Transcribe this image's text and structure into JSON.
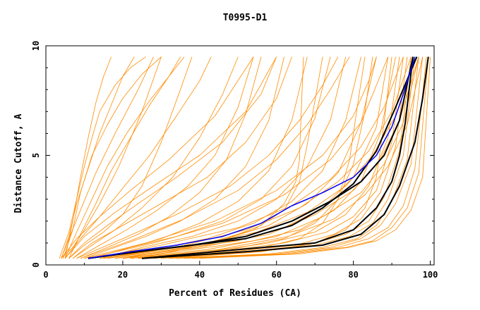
{
  "chart_data": {
    "type": "line",
    "title": "T0995-D1",
    "xlabel": "Percent of Residues (CA)",
    "ylabel": "Distance Cutoff, A",
    "xlim": [
      0,
      101
    ],
    "ylim": [
      0,
      10
    ],
    "x_ticks": [
      "0",
      "20",
      "40",
      "60",
      "80",
      "100"
    ],
    "y_ticks": [
      "0",
      "5",
      "10"
    ],
    "grid": false,
    "legend": "none",
    "colors": {
      "models": "#ff8c00",
      "highlight_black": "#000000",
      "highlight_blue": "#0000ff"
    },
    "series": [
      {
        "x": [
          3.5,
          6,
          8,
          10,
          12,
          14,
          18,
          22,
          26
        ],
        "y": [
          0.3,
          1.5,
          3.0,
          4.5,
          5.8,
          7.0,
          8.2,
          9.0,
          9.5
        ],
        "color": "#ff8c00"
      },
      {
        "x": [
          4,
          6,
          8,
          11,
          14,
          17,
          20,
          23
        ],
        "y": [
          0.3,
          1.3,
          2.8,
          4.4,
          6.0,
          7.3,
          8.6,
          9.5
        ],
        "color": "#ff8c00"
      },
      {
        "x": [
          4.5,
          7,
          9,
          12,
          16,
          20,
          25,
          30
        ],
        "y": [
          0.3,
          1.6,
          3.3,
          5.0,
          6.4,
          7.6,
          8.7,
          9.5
        ],
        "color": "#ff8c00"
      },
      {
        "x": [
          5,
          7,
          9,
          11,
          13,
          15,
          17
        ],
        "y": [
          0.3,
          2.0,
          4.0,
          5.8,
          7.4,
          8.6,
          9.5
        ],
        "color": "#ff8c00"
      },
      {
        "x": [
          4,
          6,
          9,
          13,
          18,
          24,
          28
        ],
        "y": [
          0.3,
          1.2,
          2.5,
          4.2,
          6.0,
          8.0,
          9.5
        ],
        "color": "#ff8c00"
      },
      {
        "x": [
          5,
          8,
          12,
          16,
          21,
          27,
          32,
          36
        ],
        "y": [
          0.3,
          1.5,
          3.0,
          4.5,
          6.0,
          7.5,
          8.6,
          9.5
        ],
        "color": "#ff8c00"
      },
      {
        "x": [
          4,
          7,
          10,
          14,
          19,
          25,
          30
        ],
        "y": [
          0.3,
          0.8,
          1.6,
          2.8,
          4.5,
          7.0,
          9.5
        ],
        "color": "#ff8c00"
      },
      {
        "x": [
          6,
          9,
          13,
          17,
          22,
          27,
          32,
          35
        ],
        "y": [
          0.3,
          1.4,
          2.8,
          4.3,
          5.8,
          7.3,
          8.6,
          9.5
        ],
        "color": "#ff8c00"
      },
      {
        "x": [
          5,
          9,
          14,
          20,
          27,
          34,
          40,
          43
        ],
        "y": [
          0.3,
          1.2,
          2.2,
          3.5,
          5.0,
          6.8,
          8.4,
          9.5
        ],
        "color": "#ff8c00"
      },
      {
        "x": [
          6,
          10,
          15,
          20,
          25,
          30,
          35,
          38
        ],
        "y": [
          0.3,
          0.9,
          1.5,
          2.3,
          3.6,
          5.6,
          8.0,
          9.5
        ],
        "color": "#ff8c00"
      },
      {
        "x": [
          7,
          12,
          18,
          25,
          33,
          40,
          46,
          50
        ],
        "y": [
          0.3,
          0.9,
          1.6,
          2.6,
          4.0,
          5.8,
          7.8,
          9.5
        ],
        "color": "#ff8c00"
      },
      {
        "x": [
          8,
          14,
          21,
          29,
          37,
          44,
          50,
          54
        ],
        "y": [
          0.3,
          0.9,
          1.6,
          2.5,
          3.6,
          5.0,
          7.2,
          9.5
        ],
        "color": "#ff8c00"
      },
      {
        "x": [
          9,
          16,
          24,
          32,
          40,
          47,
          52,
          56
        ],
        "y": [
          0.3,
          0.8,
          1.4,
          2.2,
          3.3,
          4.8,
          6.9,
          9.5
        ],
        "color": "#ff8c00"
      },
      {
        "x": [
          10,
          18,
          26,
          35,
          44,
          52,
          58,
          62
        ],
        "y": [
          0.3,
          0.8,
          1.3,
          2.0,
          3.0,
          4.5,
          6.6,
          9.5
        ],
        "color": "#ff8c00"
      },
      {
        "x": [
          12,
          20,
          30,
          40,
          50,
          58,
          64,
          68
        ],
        "y": [
          0.3,
          0.7,
          1.2,
          1.9,
          2.9,
          4.3,
          6.6,
          9.5
        ],
        "color": "#ff8c00"
      },
      {
        "x": [
          12,
          22,
          34,
          46,
          56,
          64,
          70,
          74
        ],
        "y": [
          0.3,
          0.8,
          1.3,
          2.0,
          3.0,
          4.5,
          6.7,
          9.5
        ],
        "color": "#ff8c00"
      },
      {
        "x": [
          14,
          25,
          38,
          50,
          60,
          68,
          74,
          78
        ],
        "y": [
          0.3,
          0.8,
          1.3,
          2.0,
          3.0,
          4.5,
          6.6,
          9.5
        ],
        "color": "#ff8c00"
      },
      {
        "x": [
          15,
          28,
          42,
          54,
          64,
          72,
          78,
          82
        ],
        "y": [
          0.3,
          0.7,
          1.2,
          1.9,
          2.9,
          4.3,
          6.6,
          9.5
        ],
        "color": "#ff8c00"
      },
      {
        "x": [
          16,
          30,
          45,
          58,
          68,
          76,
          82,
          86
        ],
        "y": [
          0.3,
          0.7,
          1.1,
          1.8,
          2.8,
          4.2,
          6.5,
          9.5
        ],
        "color": "#ff8c00"
      },
      {
        "x": [
          18,
          34,
          50,
          62,
          72,
          80,
          86,
          89
        ],
        "y": [
          0.3,
          0.7,
          1.1,
          1.7,
          2.6,
          4.0,
          6.3,
          9.5
        ],
        "color": "#ff8c00"
      },
      {
        "x": [
          20,
          38,
          54,
          66,
          75,
          82,
          87,
          91
        ],
        "y": [
          0.3,
          0.7,
          1.1,
          1.6,
          2.5,
          3.8,
          6.0,
          9.5
        ],
        "color": "#ff8c00"
      },
      {
        "x": [
          22,
          42,
          58,
          70,
          78,
          84,
          89,
          92
        ],
        "y": [
          0.3,
          0.6,
          1.0,
          1.5,
          2.3,
          3.6,
          5.8,
          9.5
        ],
        "color": "#ff8c00"
      },
      {
        "x": [
          24,
          45,
          62,
          73,
          80,
          86,
          90,
          93
        ],
        "y": [
          0.3,
          0.6,
          1.0,
          1.5,
          2.2,
          3.4,
          5.6,
          9.5
        ],
        "color": "#ff8c00"
      },
      {
        "x": [
          26,
          48,
          65,
          75,
          82,
          87,
          91,
          94
        ],
        "y": [
          0.3,
          0.6,
          0.9,
          1.4,
          2.1,
          3.3,
          5.4,
          9.5
        ],
        "color": "#ff8c00"
      },
      {
        "x": [
          28,
          52,
          68,
          78,
          84,
          88,
          92,
          95
        ],
        "y": [
          0.3,
          0.6,
          0.9,
          1.4,
          2.0,
          3.1,
          5.2,
          9.5
        ],
        "color": "#ff8c00"
      },
      {
        "x": [
          30,
          55,
          70,
          79,
          85,
          89,
          93,
          96
        ],
        "y": [
          0.3,
          0.6,
          0.9,
          1.3,
          1.9,
          3.0,
          5.0,
          9.5
        ],
        "color": "#ff8c00"
      },
      {
        "x": [
          32,
          58,
          72,
          81,
          86,
          90,
          94,
          97
        ],
        "y": [
          0.3,
          0.5,
          0.8,
          1.2,
          1.8,
          2.9,
          4.8,
          9.5
        ],
        "color": "#ff8c00"
      },
      {
        "x": [
          34,
          60,
          74,
          82,
          87,
          91,
          95,
          98
        ],
        "y": [
          0.3,
          0.5,
          0.8,
          1.2,
          1.8,
          2.8,
          4.6,
          9.5
        ],
        "color": "#ff8c00"
      },
      {
        "x": [
          36,
          62,
          76,
          84,
          89,
          93,
          96,
          99
        ],
        "y": [
          0.3,
          0.5,
          0.8,
          1.2,
          1.7,
          2.7,
          4.4,
          9.5
        ],
        "color": "#ff8c00"
      },
      {
        "x": [
          38,
          64,
          78,
          85,
          90,
          94,
          97,
          99.5
        ],
        "y": [
          0.3,
          0.5,
          0.8,
          1.1,
          1.7,
          2.6,
          4.2,
          9.5
        ],
        "color": "#ff8c00"
      },
      {
        "x": [
          40,
          66,
          79,
          86,
          91,
          95,
          98,
          100
        ],
        "y": [
          0.3,
          0.5,
          0.8,
          1.1,
          1.6,
          2.5,
          4.0,
          9.5
        ],
        "color": "#ff8c00"
      },
      {
        "x": [
          12,
          30,
          50,
          64,
          74,
          82,
          88,
          93
        ],
        "y": [
          0.3,
          0.9,
          1.7,
          2.7,
          3.9,
          5.4,
          7.2,
          9.5
        ],
        "color": "#ff8c00"
      },
      {
        "x": [
          14,
          34,
          52,
          66,
          76,
          84,
          90,
          95
        ],
        "y": [
          0.3,
          0.8,
          1.6,
          2.6,
          3.8,
          5.2,
          7.0,
          9.5
        ],
        "color": "#ff8c00"
      },
      {
        "x": [
          16,
          36,
          55,
          68,
          78,
          85,
          91,
          96
        ],
        "y": [
          0.3,
          0.8,
          1.5,
          2.4,
          3.6,
          5.0,
          6.8,
          9.5
        ],
        "color": "#ff8c00"
      },
      {
        "x": [
          18,
          40,
          58,
          70,
          80,
          87,
          92,
          97
        ],
        "y": [
          0.3,
          0.8,
          1.4,
          2.3,
          3.4,
          4.8,
          6.6,
          9.5
        ],
        "color": "#ff8c00"
      },
      {
        "x": [
          20,
          42,
          60,
          72,
          82,
          88,
          93,
          97
        ],
        "y": [
          0.3,
          0.7,
          1.3,
          2.2,
          3.3,
          4.6,
          6.5,
          9.5
        ],
        "color": "#ff8c00"
      },
      {
        "x": [
          22,
          45,
          63,
          75,
          83,
          89,
          94,
          98
        ],
        "y": [
          0.3,
          0.7,
          1.3,
          2.1,
          3.2,
          4.5,
          6.4,
          9.5
        ],
        "color": "#ff8c00"
      },
      {
        "x": [
          10,
          26,
          44,
          60,
          72,
          80,
          84,
          86
        ],
        "y": [
          0.3,
          1.0,
          2.0,
          3.4,
          5.0,
          6.8,
          8.4,
          9.5
        ],
        "color": "#ff8c00"
      },
      {
        "x": [
          11,
          28,
          46,
          62,
          74,
          82,
          86,
          89
        ],
        "y": [
          0.3,
          1.0,
          1.9,
          3.2,
          4.8,
          6.5,
          8.2,
          9.5
        ],
        "color": "#ff8c00"
      },
      {
        "x": [
          8,
          20,
          34,
          48,
          58,
          66,
          72,
          76
        ],
        "y": [
          0.3,
          1.2,
          2.3,
          3.6,
          5.0,
          6.6,
          8.2,
          9.5
        ],
        "color": "#ff8c00"
      },
      {
        "x": [
          9,
          22,
          36,
          50,
          60,
          68,
          74,
          79
        ],
        "y": [
          0.3,
          1.1,
          2.1,
          3.4,
          4.8,
          6.4,
          8.0,
          9.5
        ],
        "color": "#ff8c00"
      },
      {
        "x": [
          6,
          10,
          16,
          24,
          34,
          46,
          56,
          60
        ],
        "y": [
          0.3,
          1.0,
          1.8,
          2.8,
          4.0,
          5.6,
          7.8,
          9.5
        ],
        "color": "#ff8c00"
      },
      {
        "x": [
          7,
          12,
          20,
          30,
          42,
          52,
          60,
          64
        ],
        "y": [
          0.3,
          1.0,
          1.8,
          2.8,
          4.0,
          5.6,
          7.6,
          9.5
        ],
        "color": "#ff8c00"
      },
      {
        "x": [
          4,
          8,
          14,
          22,
          32,
          44,
          54
        ],
        "y": [
          0.3,
          1.2,
          2.2,
          3.4,
          4.8,
          6.8,
          9.5
        ],
        "color": "#ff8c00"
      },
      {
        "x": [
          5,
          10,
          18,
          28,
          40,
          52,
          60
        ],
        "y": [
          0.3,
          1.3,
          2.4,
          3.6,
          5.0,
          7.0,
          9.5
        ],
        "color": "#ff8c00"
      },
      {
        "x": [
          25,
          48,
          62,
          70,
          76,
          80,
          83,
          85
        ],
        "y": [
          0.3,
          0.7,
          1.2,
          1.9,
          3.0,
          4.6,
          7.0,
          9.5
        ],
        "color": "#ff8c00"
      },
      {
        "x": [
          30,
          54,
          66,
          72,
          76,
          79,
          81,
          83
        ],
        "y": [
          0.3,
          0.7,
          1.2,
          1.9,
          3.0,
          4.8,
          7.2,
          9.5
        ],
        "color": "#ff8c00"
      },
      {
        "x": [
          20,
          40,
          54,
          62,
          66,
          68,
          70,
          72
        ],
        "y": [
          0.3,
          0.9,
          1.6,
          2.5,
          3.8,
          5.5,
          7.5,
          9.5
        ],
        "color": "#ff8c00"
      },
      {
        "x": [
          24,
          44,
          56,
          62,
          65,
          66,
          66,
          67
        ],
        "y": [
          0.3,
          1.0,
          1.8,
          2.8,
          3.8,
          4.8,
          5.1,
          9.5
        ],
        "color": "#ff8c00"
      },
      {
        "x": [
          32,
          56,
          70,
          78,
          83,
          86,
          88,
          90
        ],
        "y": [
          0.3,
          0.6,
          1.0,
          1.6,
          2.6,
          4.0,
          6.5,
          9.5
        ],
        "color": "#ff8c00"
      },
      {
        "x": [
          11,
          24,
          38,
          52,
          64,
          74,
          82,
          88,
          92,
          95.5
        ],
        "y": [
          0.3,
          0.6,
          0.9,
          1.3,
          2.0,
          2.9,
          3.8,
          5.0,
          6.6,
          9.5
        ],
        "color": "#000000",
        "width": 2
      },
      {
        "x": [
          11,
          24,
          38,
          52,
          64,
          72,
          80,
          86,
          91,
          96.5
        ],
        "y": [
          0.3,
          0.6,
          0.9,
          1.2,
          1.8,
          2.6,
          3.7,
          5.2,
          7.2,
          9.5
        ],
        "color": "#000000",
        "width": 2
      },
      {
        "x": [
          25,
          50,
          70,
          80,
          86,
          90,
          92,
          93.5,
          94.5,
          95.5
        ],
        "y": [
          0.3,
          0.7,
          1.0,
          1.6,
          2.6,
          3.8,
          5.0,
          6.5,
          8.0,
          9.5
        ],
        "color": "#000000",
        "width": 2
      },
      {
        "x": [
          25,
          52,
          72,
          82,
          88,
          92,
          96,
          98,
          99.5
        ],
        "y": [
          0.3,
          0.6,
          0.9,
          1.4,
          2.3,
          3.6,
          5.6,
          7.6,
          9.5
        ],
        "color": "#000000",
        "width": 2
      },
      {
        "x": [
          11,
          22,
          34,
          46,
          56,
          64,
          72,
          80,
          86,
          90,
          93,
          96
        ],
        "y": [
          0.3,
          0.6,
          0.9,
          1.3,
          1.9,
          2.7,
          3.3,
          4.0,
          5.0,
          6.3,
          7.8,
          9.5
        ],
        "color": "#0000ff",
        "width": 1.5
      }
    ]
  }
}
